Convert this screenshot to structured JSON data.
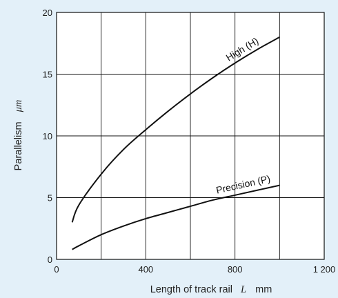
{
  "chart_data": {
    "type": "line",
    "xlabel_text": "Length of track rail",
    "xlabel_symbol": "L",
    "xlabel_unit": "mm",
    "ylabel_text": "Parallelism",
    "ylabel_unit": "μm",
    "xlim": [
      0,
      1200
    ],
    "ylim": [
      0,
      20
    ],
    "x_ticks": [
      0,
      400,
      800,
      1200
    ],
    "x_tick_labels": [
      "0",
      "400",
      "800",
      "1 200"
    ],
    "y_ticks": [
      0,
      5,
      10,
      15,
      20
    ],
    "y_tick_labels": [
      "0",
      "5",
      "10",
      "15",
      "20"
    ],
    "grid": true,
    "series": [
      {
        "name": "High (H)",
        "x": [
          70,
          100,
          200,
          300,
          400,
          500,
          600,
          700,
          800,
          900,
          1000
        ],
        "y": [
          3.0,
          4.4,
          6.9,
          8.9,
          10.5,
          12.0,
          13.4,
          14.7,
          15.9,
          17.0,
          18.0
        ]
      },
      {
        "name": "Precision (P)",
        "x": [
          70,
          100,
          200,
          300,
          400,
          500,
          600,
          700,
          800,
          900,
          1000
        ],
        "y": [
          0.8,
          1.1,
          2.0,
          2.7,
          3.3,
          3.8,
          4.3,
          4.8,
          5.2,
          5.6,
          6.0
        ]
      }
    ],
    "colors": {
      "background": "#e3f0f9",
      "plot_area": "#ffffff",
      "line": "#111111",
      "grid": "#111111"
    }
  }
}
